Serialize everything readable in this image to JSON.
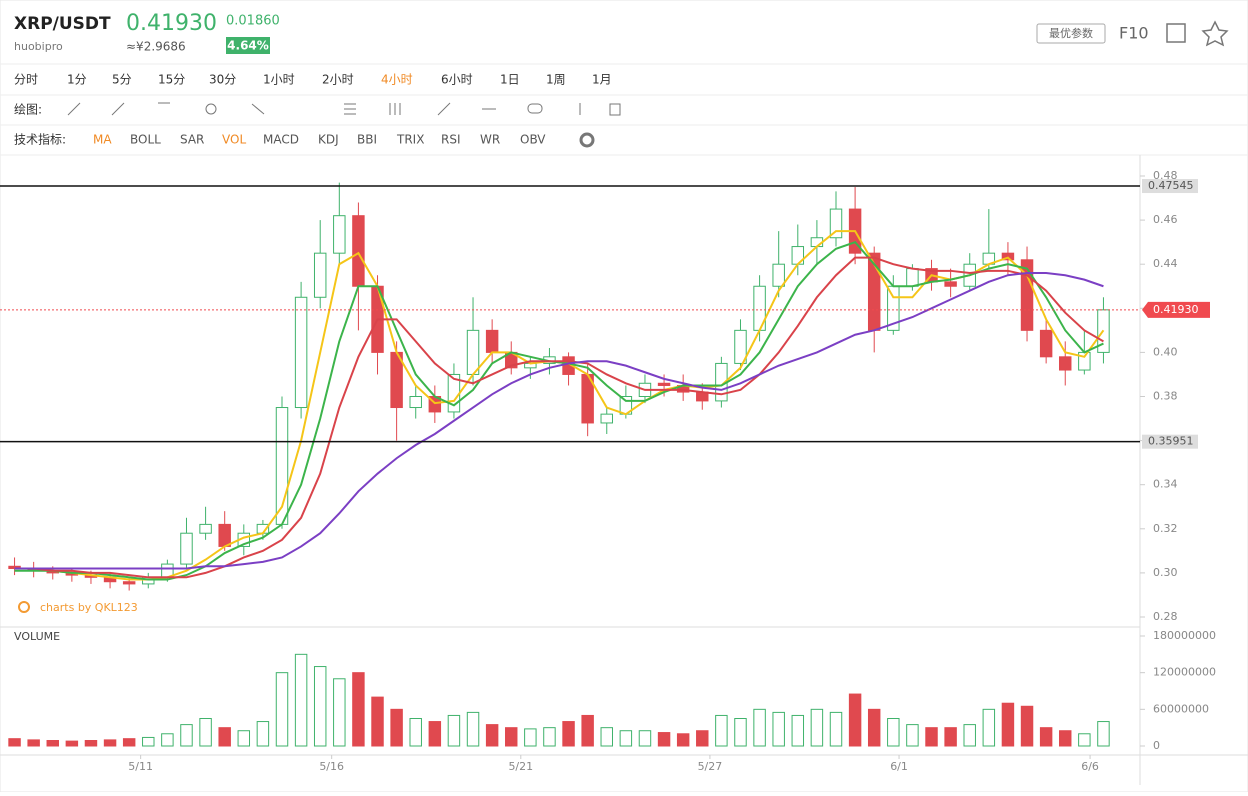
{
  "header": {
    "pair": "XRP/USDT",
    "exchange": "huobipro",
    "price": "0.41930",
    "change": "0.01860",
    "cny": "≈¥2.9686",
    "change_pct": "4.64%",
    "params_button": "最优参数",
    "f10": "F10"
  },
  "timeframes": [
    "分时",
    "1分",
    "5分",
    "15分",
    "30分",
    "1小时",
    "2小时",
    "4小时",
    "6小时",
    "1日",
    "1周",
    "1月"
  ],
  "active_timeframe_index": 7,
  "draw_label": "绘图:",
  "indicator_label": "技术指标:",
  "indicators": [
    "MA",
    "BOLL",
    "SAR",
    "VOL",
    "MACD",
    "KDJ",
    "BBI",
    "TRIX",
    "RSI",
    "WR",
    "OBV"
  ],
  "active_indicator_indices": [
    0,
    3
  ],
  "watermark": "charts by QKL123",
  "volume_label": "VOLUME",
  "chart_data": {
    "type": "candlestick",
    "xlim": [
      -0.5,
      57.5
    ],
    "xticks": [
      {
        "value": 6.6,
        "label": "5/11"
      },
      {
        "value": 16.6,
        "label": "5/16"
      },
      {
        "value": 26.5,
        "label": "5/21"
      },
      {
        "value": 36.4,
        "label": "5/27"
      },
      {
        "value": 46.3,
        "label": "6/1"
      },
      {
        "value": 56.3,
        "label": "6/6"
      }
    ],
    "ylim": [
      0.28,
      0.48
    ],
    "yticks": [
      0.28,
      {
        "value": 0.3,
        "label": "0.30"
      },
      0.32,
      0.34,
      0.36,
      0.38,
      {
        "value": 0.4,
        "label": "0.40"
      },
      0.42,
      0.44,
      0.46,
      0.48
    ],
    "grid": false,
    "up_color": "#3fb26b",
    "down_color": "#e0494f",
    "open": [
      0.303,
      0.302,
      0.301,
      0.3,
      0.299,
      0.298,
      0.296,
      0.295,
      0.298,
      0.304,
      0.318,
      0.322,
      0.312,
      0.318,
      0.322,
      0.375,
      0.425,
      0.445,
      0.462,
      0.43,
      0.4,
      0.375,
      0.38,
      0.373,
      0.39,
      0.41,
      0.4,
      0.393,
      0.395,
      0.398,
      0.39,
      0.368,
      0.372,
      0.38,
      0.386,
      0.385,
      0.382,
      0.378,
      0.395,
      0.41,
      0.43,
      0.44,
      0.448,
      0.452,
      0.465,
      0.445,
      0.41,
      0.43,
      0.438,
      0.432,
      0.43,
      0.44,
      0.445,
      0.442,
      0.41,
      0.398,
      0.392,
      0.4
    ],
    "high": [
      0.307,
      0.305,
      0.303,
      0.302,
      0.301,
      0.3,
      0.298,
      0.3,
      0.306,
      0.325,
      0.33,
      0.328,
      0.322,
      0.324,
      0.38,
      0.432,
      0.46,
      0.477,
      0.468,
      0.435,
      0.405,
      0.385,
      0.385,
      0.395,
      0.425,
      0.415,
      0.405,
      0.398,
      0.402,
      0.4,
      0.395,
      0.375,
      0.385,
      0.39,
      0.39,
      0.39,
      0.386,
      0.398,
      0.415,
      0.435,
      0.455,
      0.458,
      0.46,
      0.473,
      0.475,
      0.448,
      0.435,
      0.44,
      0.442,
      0.438,
      0.445,
      0.465,
      0.45,
      0.448,
      0.415,
      0.405,
      0.41,
      0.425
    ],
    "low": [
      0.299,
      0.298,
      0.297,
      0.296,
      0.295,
      0.293,
      0.292,
      0.293,
      0.296,
      0.302,
      0.315,
      0.31,
      0.308,
      0.315,
      0.32,
      0.37,
      0.42,
      0.44,
      0.41,
      0.39,
      0.36,
      0.37,
      0.368,
      0.37,
      0.385,
      0.395,
      0.39,
      0.388,
      0.39,
      0.385,
      0.362,
      0.363,
      0.37,
      0.377,
      0.38,
      0.378,
      0.374,
      0.375,
      0.392,
      0.405,
      0.425,
      0.435,
      0.44,
      0.448,
      0.44,
      0.4,
      0.408,
      0.428,
      0.428,
      0.425,
      0.428,
      0.438,
      0.435,
      0.405,
      0.395,
      0.385,
      0.39,
      0.395
    ],
    "close": [
      0.302,
      0.301,
      0.3,
      0.299,
      0.298,
      0.296,
      0.295,
      0.298,
      0.304,
      0.318,
      0.322,
      0.312,
      0.318,
      0.322,
      0.375,
      0.425,
      0.445,
      0.462,
      0.43,
      0.4,
      0.375,
      0.38,
      0.373,
      0.39,
      0.41,
      0.4,
      0.393,
      0.395,
      0.398,
      0.39,
      0.368,
      0.372,
      0.38,
      0.386,
      0.385,
      0.382,
      0.378,
      0.395,
      0.41,
      0.43,
      0.44,
      0.448,
      0.452,
      0.465,
      0.445,
      0.41,
      0.43,
      0.438,
      0.432,
      0.43,
      0.44,
      0.445,
      0.442,
      0.41,
      0.398,
      0.392,
      0.4,
      0.4193
    ],
    "series": [
      {
        "color": "#f5c518",
        "values": [
          0.302,
          0.302,
          0.301,
          0.3,
          0.299,
          0.298,
          0.297,
          0.297,
          0.298,
          0.301,
          0.306,
          0.312,
          0.316,
          0.318,
          0.33,
          0.36,
          0.4,
          0.44,
          0.445,
          0.43,
          0.4,
          0.385,
          0.377,
          0.378,
          0.39,
          0.4,
          0.4,
          0.395,
          0.396,
          0.395,
          0.39,
          0.375,
          0.372,
          0.378,
          0.383,
          0.385,
          0.384,
          0.385,
          0.393,
          0.41,
          0.428,
          0.44,
          0.448,
          0.455,
          0.455,
          0.44,
          0.425,
          0.425,
          0.435,
          0.433,
          0.435,
          0.44,
          0.443,
          0.435,
          0.415,
          0.4,
          0.398,
          0.41
        ]
      },
      {
        "color": "#3cb44b",
        "values": [
          0.301,
          0.301,
          0.301,
          0.3,
          0.3,
          0.299,
          0.298,
          0.297,
          0.297,
          0.299,
          0.303,
          0.309,
          0.313,
          0.316,
          0.322,
          0.34,
          0.37,
          0.405,
          0.43,
          0.43,
          0.41,
          0.39,
          0.38,
          0.376,
          0.383,
          0.395,
          0.4,
          0.398,
          0.396,
          0.395,
          0.393,
          0.385,
          0.378,
          0.378,
          0.382,
          0.385,
          0.385,
          0.385,
          0.39,
          0.4,
          0.415,
          0.43,
          0.44,
          0.447,
          0.45,
          0.44,
          0.43,
          0.43,
          0.432,
          0.433,
          0.435,
          0.438,
          0.44,
          0.438,
          0.425,
          0.41,
          0.4,
          0.404
        ]
      },
      {
        "color": "#d9434a",
        "values": [
          0.302,
          0.302,
          0.301,
          0.301,
          0.3,
          0.3,
          0.299,
          0.298,
          0.298,
          0.298,
          0.3,
          0.303,
          0.307,
          0.31,
          0.315,
          0.325,
          0.345,
          0.375,
          0.398,
          0.415,
          0.415,
          0.405,
          0.395,
          0.388,
          0.386,
          0.39,
          0.394,
          0.396,
          0.396,
          0.396,
          0.395,
          0.39,
          0.386,
          0.383,
          0.383,
          0.383,
          0.382,
          0.381,
          0.383,
          0.39,
          0.4,
          0.412,
          0.425,
          0.435,
          0.443,
          0.443,
          0.44,
          0.438,
          0.437,
          0.437,
          0.436,
          0.437,
          0.437,
          0.435,
          0.428,
          0.418,
          0.41,
          0.405
        ]
      },
      {
        "color": "#7b3fc4",
        "values": [
          0.302,
          0.302,
          0.302,
          0.302,
          0.302,
          0.302,
          0.302,
          0.302,
          0.302,
          0.302,
          0.303,
          0.303,
          0.304,
          0.305,
          0.307,
          0.312,
          0.318,
          0.327,
          0.337,
          0.345,
          0.352,
          0.358,
          0.363,
          0.369,
          0.375,
          0.381,
          0.386,
          0.39,
          0.393,
          0.395,
          0.396,
          0.396,
          0.394,
          0.391,
          0.388,
          0.386,
          0.384,
          0.383,
          0.386,
          0.39,
          0.394,
          0.397,
          0.4,
          0.404,
          0.408,
          0.41,
          0.413,
          0.416,
          0.42,
          0.424,
          0.428,
          0.432,
          0.435,
          0.436,
          0.436,
          0.435,
          0.433,
          0.43
        ]
      }
    ],
    "hlines": [
      0.47545,
      0.35951
    ],
    "last_price": 0.4193,
    "last_price_label": "0.41930",
    "last_price_color": "#f04a4f",
    "volume": [
      12000000.0,
      10000000.0,
      9000000.0,
      8000000.0,
      9000000.0,
      10000000.0,
      12000000.0,
      14000000.0,
      20000000.0,
      35000000.0,
      45000000.0,
      30000000.0,
      25000000.0,
      40000000.0,
      120000000.0,
      150000000.0,
      130000000.0,
      110000000.0,
      120000000.0,
      80000000.0,
      60000000.0,
      45000000.0,
      40000000.0,
      50000000.0,
      55000000.0,
      35000000.0,
      30000000.0,
      28000000.0,
      30000000.0,
      40000000.0,
      50000000.0,
      30000000.0,
      25000000.0,
      25000000.0,
      22000000.0,
      20000000.0,
      25000000.0,
      50000000.0,
      45000000.0,
      60000000.0,
      55000000.0,
      50000000.0,
      60000000.0,
      55000000.0,
      85000000.0,
      60000000.0,
      45000000.0,
      35000000.0,
      30000000.0,
      30000000.0,
      35000000.0,
      60000000.0,
      70000000.0,
      65000000.0,
      30000000.0,
      25000000.0,
      20000000.0,
      40000000.0
    ],
    "vlim": [
      0,
      180000000
    ],
    "vticks": [
      0,
      60000000,
      120000000,
      180000000
    ]
  }
}
